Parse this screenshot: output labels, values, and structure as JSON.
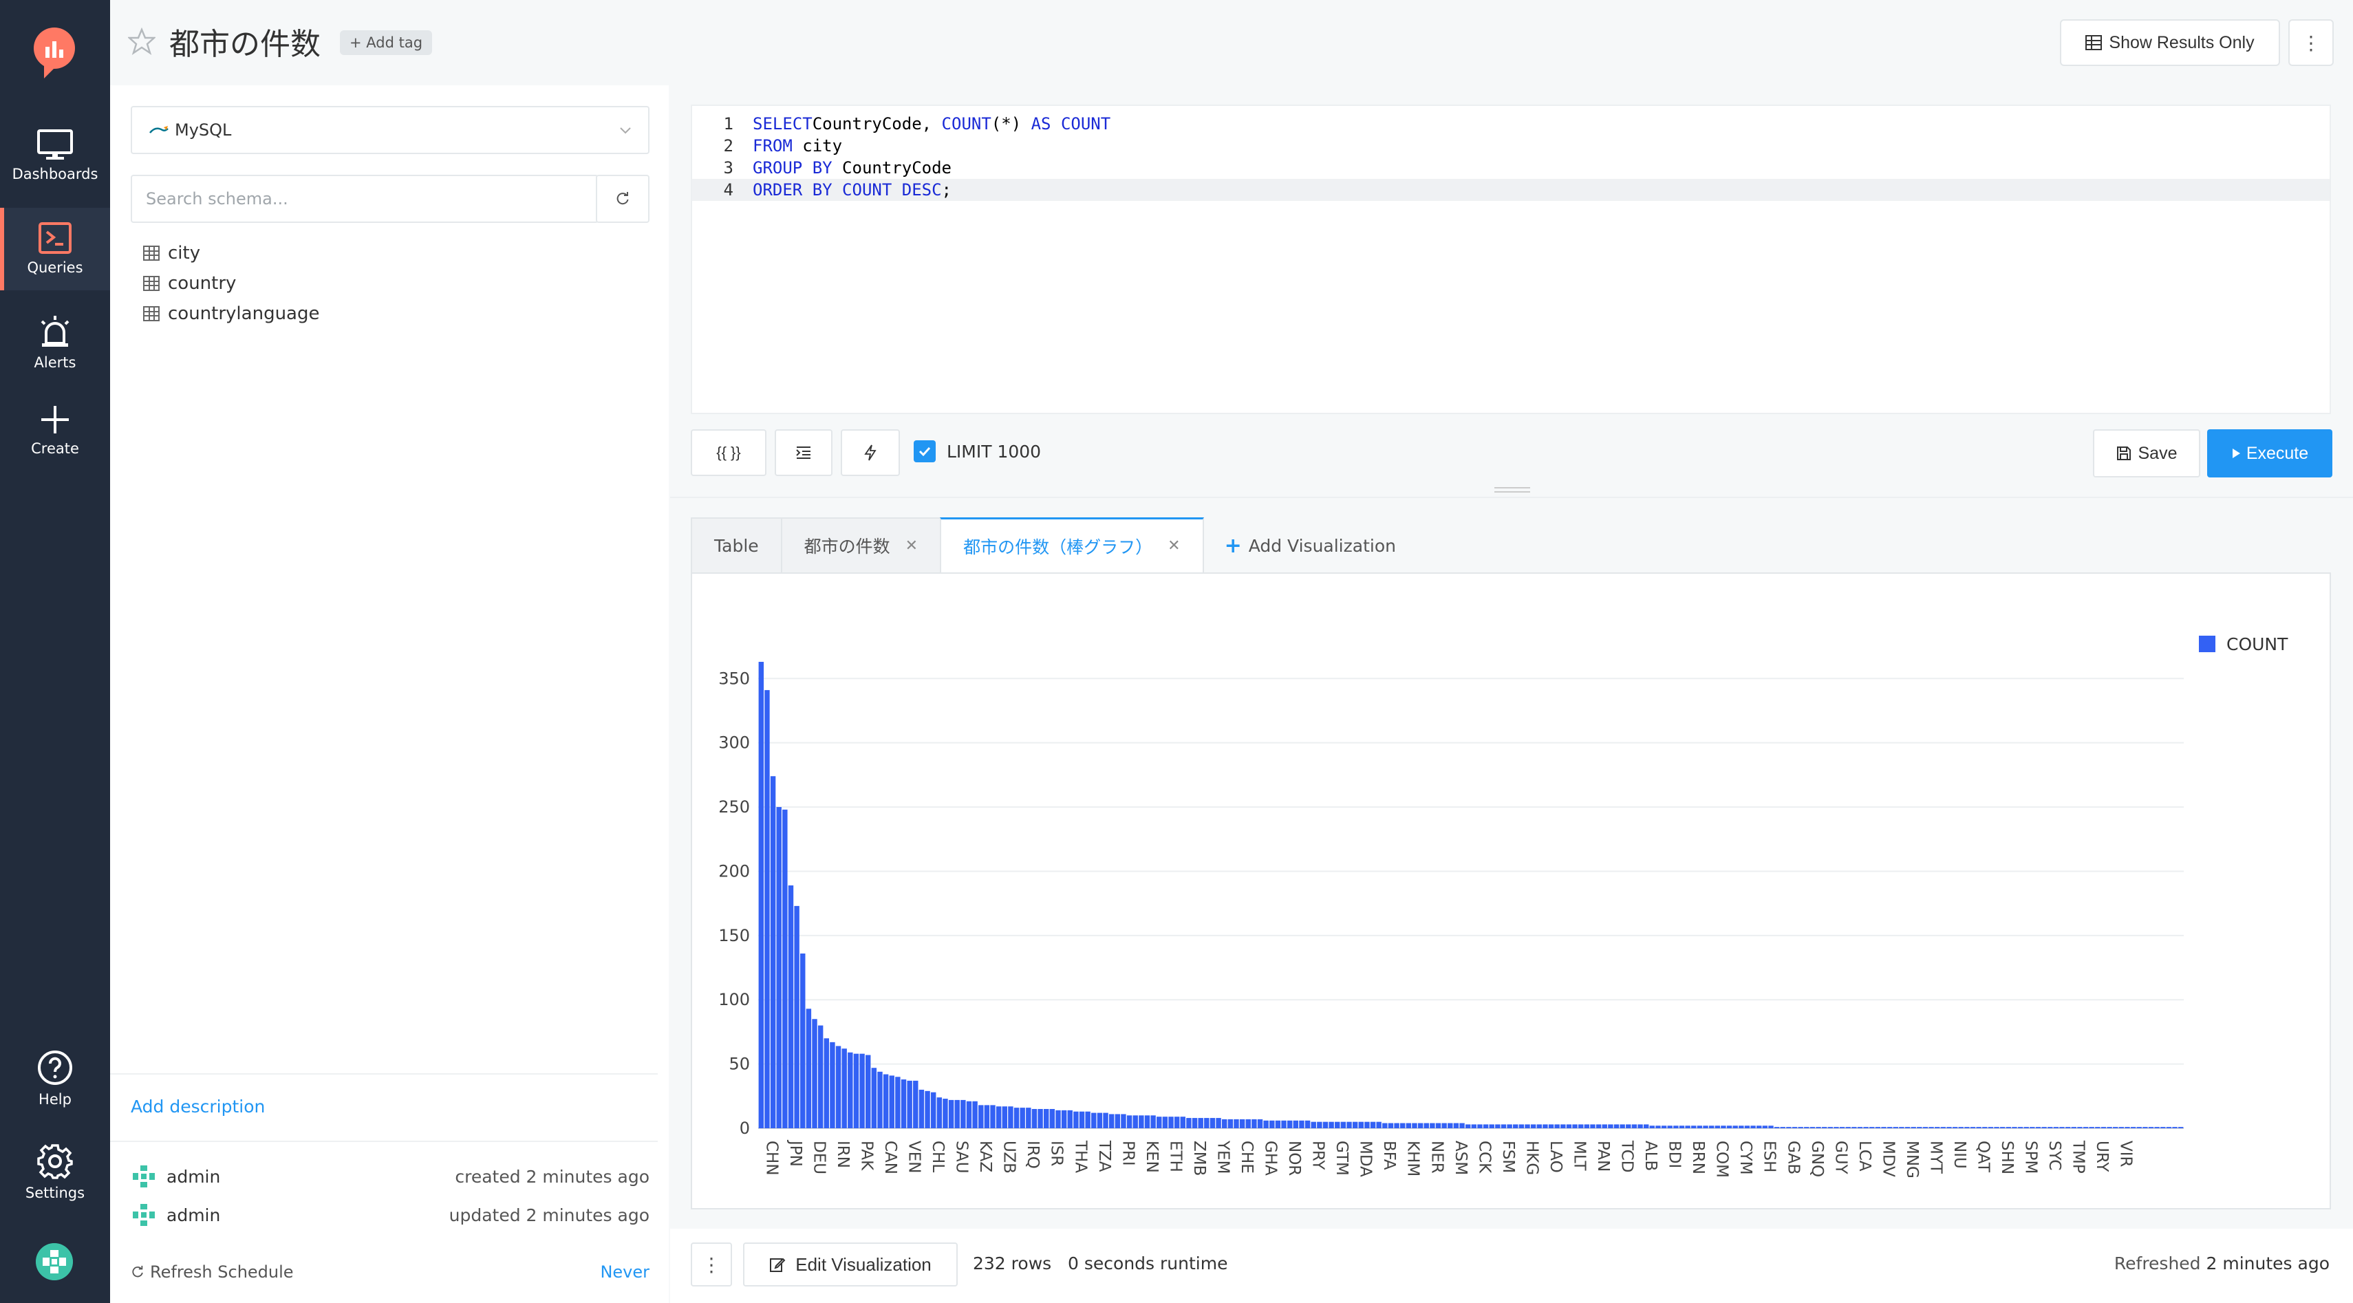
{
  "nav": {
    "items": [
      {
        "label": "Dashboards",
        "icon": "monitor-icon"
      },
      {
        "label": "Queries",
        "icon": "terminal-icon"
      },
      {
        "label": "Alerts",
        "icon": "alarm-icon"
      },
      {
        "label": "Create",
        "icon": "plus-icon"
      },
      {
        "label": "Help",
        "icon": "help-icon"
      },
      {
        "label": "Settings",
        "icon": "gear-icon"
      }
    ],
    "active": "Queries"
  },
  "header": {
    "title": "都市の件数",
    "add_tag": "+ Add tag",
    "show_results_only": "Show Results Only",
    "more": "⋮"
  },
  "schema": {
    "datasource": "MySQL",
    "search_placeholder": "Search schema...",
    "tables": [
      "city",
      "country",
      "countrylanguage"
    ],
    "add_description": "Add description",
    "created": {
      "user": "admin",
      "text": "created 2 minutes ago"
    },
    "updated": {
      "user": "admin",
      "text": "updated 2 minutes ago"
    },
    "refresh_schedule_label": "Refresh Schedule",
    "refresh_schedule_value": "Never"
  },
  "editor": {
    "lines": [
      {
        "n": "1",
        "tokens": [
          [
            "kw",
            "SELECT"
          ],
          [
            "",
            "CountryCode, "
          ],
          [
            "fn",
            "COUNT"
          ],
          [
            "",
            "(*) "
          ],
          [
            "kw",
            "AS"
          ],
          [
            "",
            " "
          ],
          [
            "fn",
            "COUNT"
          ]
        ]
      },
      {
        "n": "2",
        "tokens": [
          [
            "kw",
            "FROM"
          ],
          [
            "",
            " city"
          ]
        ]
      },
      {
        "n": "3",
        "tokens": [
          [
            "kw",
            "GROUP BY"
          ],
          [
            "",
            " CountryCode"
          ]
        ]
      },
      {
        "n": "4",
        "tokens": [
          [
            "kw",
            "ORDER BY"
          ],
          [
            "",
            " "
          ],
          [
            "fn",
            "COUNT"
          ],
          [
            "",
            " "
          ],
          [
            "kw",
            "DESC"
          ],
          [
            "",
            ";"
          ]
        ]
      }
    ],
    "param_button": "{{ }}",
    "limit_label": "LIMIT 1000",
    "limit_checked": true,
    "save_label": "Save",
    "execute_label": "Execute"
  },
  "results": {
    "tabs": [
      {
        "label": "Table",
        "closable": false,
        "active": false
      },
      {
        "label": "都市の件数",
        "closable": true,
        "active": false
      },
      {
        "label": "都市の件数（棒グラフ）",
        "closable": true,
        "active": true
      }
    ],
    "add_visualization": "Add Visualization"
  },
  "chart_data": {
    "type": "bar",
    "series": [
      {
        "name": "COUNT",
        "color": "#3361f4"
      }
    ],
    "ylim": [
      0,
      350
    ],
    "yticks": [
      0,
      50,
      100,
      150,
      200,
      250,
      300,
      350
    ],
    "xtick_labels": [
      "CHN",
      "JPN",
      "DEU",
      "IRN",
      "PAK",
      "CAN",
      "VEN",
      "CHL",
      "SAU",
      "KAZ",
      "UZB",
      "IRQ",
      "ISR",
      "THA",
      "TZA",
      "PRI",
      "KEN",
      "ETH",
      "ZMB",
      "YEM",
      "CHE",
      "GHA",
      "NOR",
      "PRY",
      "GTM",
      "MDA",
      "BFA",
      "KHM",
      "NER",
      "ASM",
      "CCK",
      "FSM",
      "HKG",
      "LAO",
      "MLT",
      "PAN",
      "TCD",
      "ALB",
      "BDI",
      "BRN",
      "COM",
      "CYM",
      "ESH",
      "GAB",
      "GNQ",
      "GUY",
      "LCA",
      "MDV",
      "MNG",
      "MYT",
      "NIU",
      "QAT",
      "SHN",
      "SPM",
      "SYC",
      "TMP",
      "URY",
      "VIR"
    ],
    "values": [
      363,
      341,
      274,
      250,
      248,
      189,
      173,
      136,
      93,
      85,
      80,
      70,
      67,
      64,
      62,
      59,
      58,
      58,
      57,
      47,
      44,
      42,
      41,
      40,
      38,
      37,
      37,
      30,
      29,
      28,
      24,
      23,
      22,
      22,
      22,
      21,
      21,
      18,
      18,
      18,
      17,
      17,
      17,
      16,
      16,
      16,
      15,
      15,
      15,
      15,
      14,
      14,
      14,
      13,
      13,
      13,
      12,
      12,
      12,
      11,
      11,
      11,
      10,
      10,
      10,
      10,
      10,
      9,
      9,
      9,
      9,
      9,
      8,
      8,
      8,
      8,
      8,
      8,
      7,
      7,
      7,
      7,
      7,
      7,
      7,
      6,
      6,
      6,
      6,
      6,
      6,
      6,
      6,
      5,
      5,
      5,
      5,
      5,
      5,
      5,
      5,
      5,
      5,
      5,
      5,
      4,
      4,
      4,
      4,
      4,
      4,
      4,
      4,
      4,
      4,
      4,
      4,
      4,
      4,
      3,
      3,
      3,
      3,
      3,
      3,
      3,
      3,
      3,
      3,
      3,
      3,
      3,
      3,
      3,
      3,
      3,
      3,
      3,
      3,
      3,
      3,
      3,
      3,
      3,
      3,
      3,
      3,
      3,
      3,
      3,
      2,
      2,
      2,
      2,
      2,
      2,
      2,
      2,
      2,
      2,
      2,
      2,
      2,
      2,
      2,
      2,
      2,
      2,
      2,
      2,
      2,
      1,
      1,
      1,
      1,
      1,
      1,
      1,
      1,
      1,
      1,
      1,
      1,
      1,
      1,
      1,
      1,
      1,
      1,
      1,
      1,
      1,
      1,
      1,
      1,
      1,
      1,
      1,
      1,
      1,
      1,
      1,
      1,
      1,
      1,
      1,
      1,
      1,
      1,
      1,
      1,
      1,
      1,
      1,
      1,
      1,
      1,
      1,
      1,
      1,
      1,
      1,
      1,
      1,
      1,
      1,
      1,
      1,
      1,
      1,
      1,
      1,
      1,
      1,
      1,
      1,
      1,
      1,
      1,
      1
    ],
    "legend_position": "top-right",
    "grid": true
  },
  "footer": {
    "edit_visualization": "Edit Visualization",
    "rows": "232 rows",
    "runtime": "0 seconds runtime",
    "refreshed_label": "Refreshed",
    "refreshed_value": "2 minutes ago"
  }
}
